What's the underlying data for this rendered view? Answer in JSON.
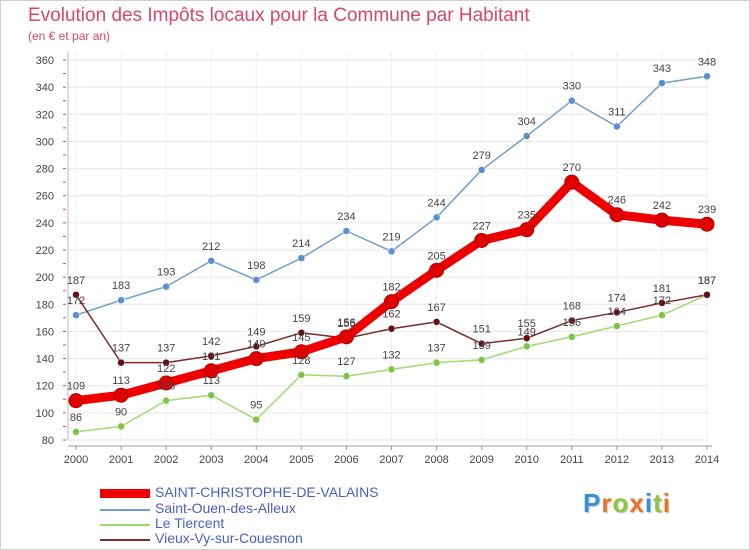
{
  "title": "Evolution des Impôts locaux pour la Commune par Habitant",
  "subtitle": "(en € et par an)",
  "brand": {
    "letters": [
      "P",
      "r",
      "o",
      "x",
      "i",
      "t",
      "i"
    ],
    "colors": [
      "#3a8fd8",
      "#e8742a",
      "#8cc63e",
      "#e8742a",
      "#3a8fd8",
      "#8cc63e",
      "#e8742a"
    ]
  },
  "chart_data": {
    "type": "line",
    "title": "Evolution des Impôts locaux pour la Commune par Habitant",
    "subtitle": "(en € et par an)",
    "xlabel": "",
    "ylabel": "",
    "x": [
      "2000",
      "2001",
      "2002",
      "2003",
      "2004",
      "2005",
      "2006",
      "2007",
      "2008",
      "2009",
      "2010",
      "2011",
      "2012",
      "2013",
      "2014"
    ],
    "ylim": [
      80,
      360
    ],
    "yticks": [
      80,
      100,
      120,
      140,
      160,
      180,
      200,
      220,
      240,
      260,
      280,
      300,
      320,
      340,
      360
    ],
    "grid": true,
    "legend_position": "bottom-left",
    "series": [
      {
        "name": "SAINT-CHRISTOPHE-DE-VALAINS",
        "color": "#ee0000",
        "marker": "#e00000",
        "values": [
          109,
          113,
          122,
          131,
          140,
          145,
          156,
          182,
          205,
          227,
          235,
          270,
          246,
          242,
          239
        ],
        "labels": [
          "109",
          "113",
          "122",
          "131",
          "140",
          "145",
          "156",
          "182",
          "205",
          "227",
          "235",
          "270",
          "246",
          "242",
          "239"
        ]
      },
      {
        "name": "Saint-Ouen-des-Alleux",
        "color": "#6f9fcf",
        "marker": "#5a8fd0",
        "values": [
          172,
          183,
          193,
          212,
          198,
          214,
          234,
          219,
          244,
          279,
          304,
          330,
          311,
          343,
          348
        ],
        "labels": [
          "172",
          "183",
          "193",
          "212",
          "198",
          "214",
          "234",
          "219",
          "244",
          "279",
          "304",
          "330",
          "311",
          "343",
          "348"
        ]
      },
      {
        "name": "Le Tiercent",
        "color": "#9edc6e",
        "marker": "#7cc44a",
        "values": [
          86,
          90,
          109,
          113,
          95,
          128,
          127,
          132,
          137,
          139,
          149,
          156,
          164,
          172,
          187
        ],
        "labels": [
          "86",
          "90",
          "109",
          "113",
          "95",
          "128",
          "127",
          "132",
          "137",
          "139",
          "149",
          "156",
          "164",
          "172",
          "187"
        ]
      },
      {
        "name": "Vieux-Vy-sur-Couesnon",
        "color": "#7a2b2b",
        "marker": "#5e1212",
        "values": [
          187,
          137,
          137,
          142,
          149,
          159,
          155,
          162,
          167,
          151,
          155,
          168,
          174,
          181,
          187
        ],
        "labels": [
          "187",
          "137",
          "137",
          "142",
          "149",
          "159",
          "155",
          "162",
          "167",
          "151",
          "155",
          "168",
          "174",
          "181",
          "187"
        ]
      }
    ]
  }
}
